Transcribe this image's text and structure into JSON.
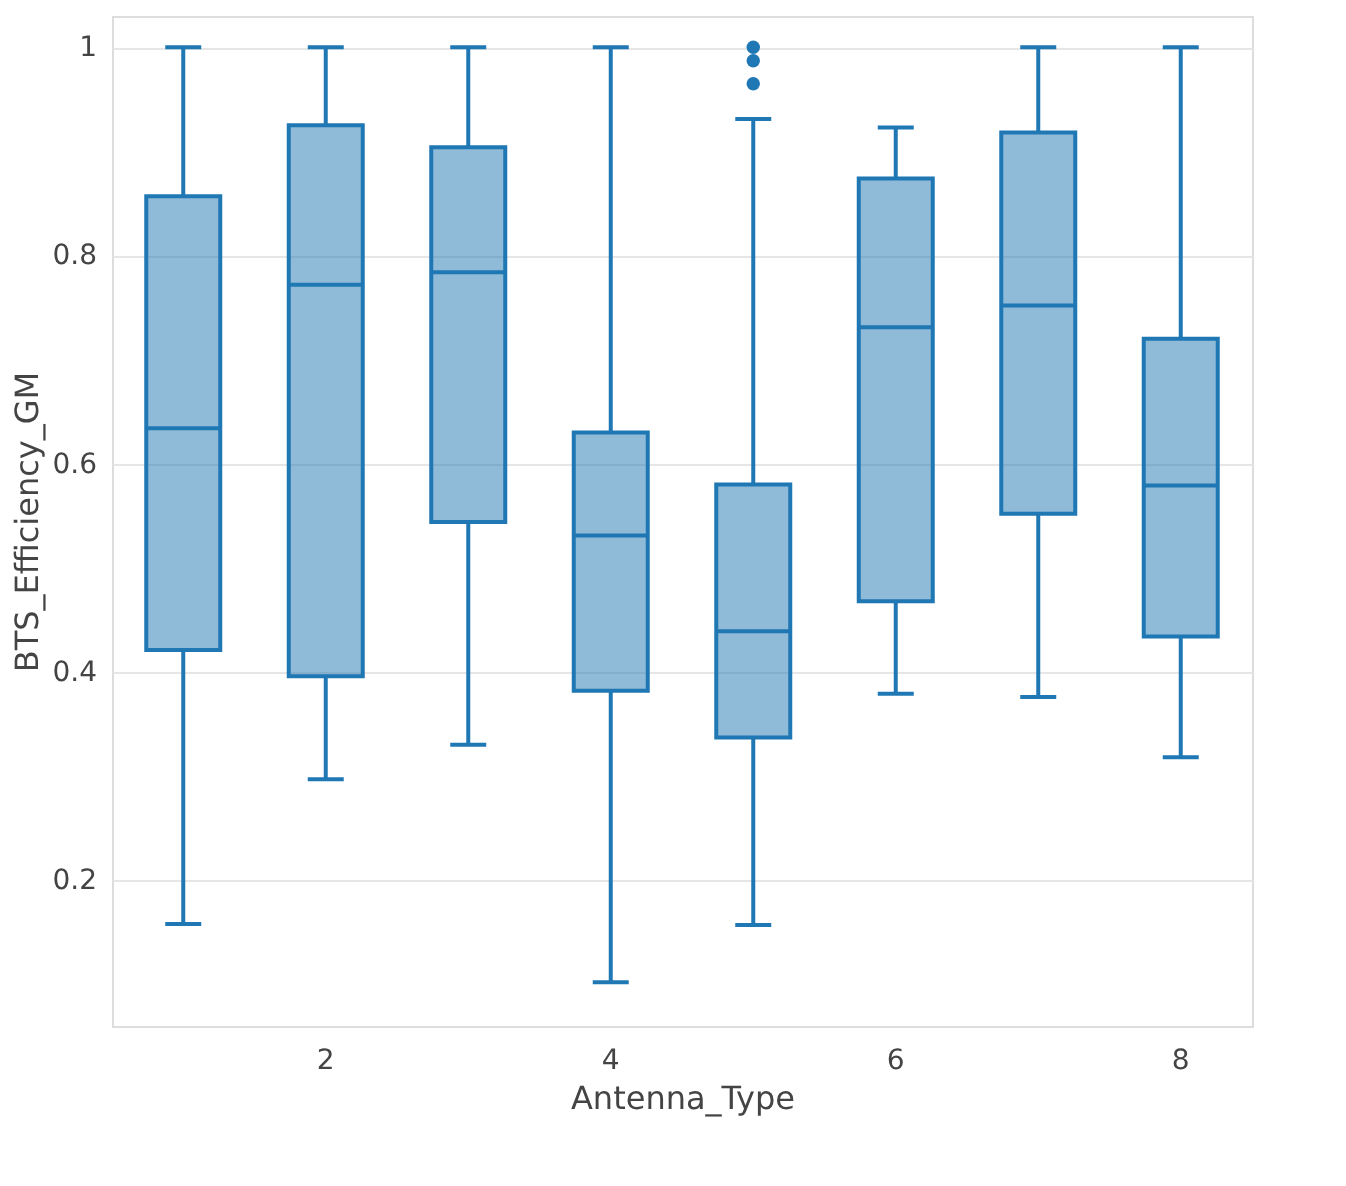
{
  "chart_data": {
    "type": "box",
    "xlabel": "Antenna_Type",
    "ylabel": "BTS_Efficiency_GM",
    "categories": [
      null,
      "2",
      null,
      "4",
      null,
      "6",
      null,
      "8"
    ],
    "ylim": [
      0.06,
      1.03
    ],
    "yticks": [
      0.2,
      0.4,
      0.6,
      0.8,
      1
    ],
    "grid": "y",
    "series": [
      {
        "color": "#1f77b4",
        "boxes": [
          {
            "low": 0.158,
            "q1": 0.421,
            "median": 0.634,
            "q3": 0.857,
            "high": 1.0
          },
          {
            "low": 0.297,
            "q1": 0.396,
            "median": 0.772,
            "q3": 0.925,
            "high": 1.0
          },
          {
            "low": 0.33,
            "q1": 0.544,
            "median": 0.784,
            "q3": 0.904,
            "high": 1.0
          },
          {
            "low": 0.102,
            "q1": 0.382,
            "median": 0.531,
            "q3": 0.63,
            "high": 1.0
          },
          {
            "low": 0.157,
            "q1": 0.337,
            "median": 0.439,
            "q3": 0.58,
            "high": 0.931,
            "outliers": [
              0.965,
              0.987,
              1.0
            ]
          },
          {
            "low": 0.379,
            "q1": 0.468,
            "median": 0.731,
            "q3": 0.874,
            "high": 0.923
          },
          {
            "low": 0.376,
            "q1": 0.552,
            "median": 0.752,
            "q3": 0.918,
            "high": 1.0
          },
          {
            "low": 0.318,
            "q1": 0.434,
            "median": 0.579,
            "q3": 0.72,
            "high": 1.0
          }
        ]
      }
    ]
  }
}
